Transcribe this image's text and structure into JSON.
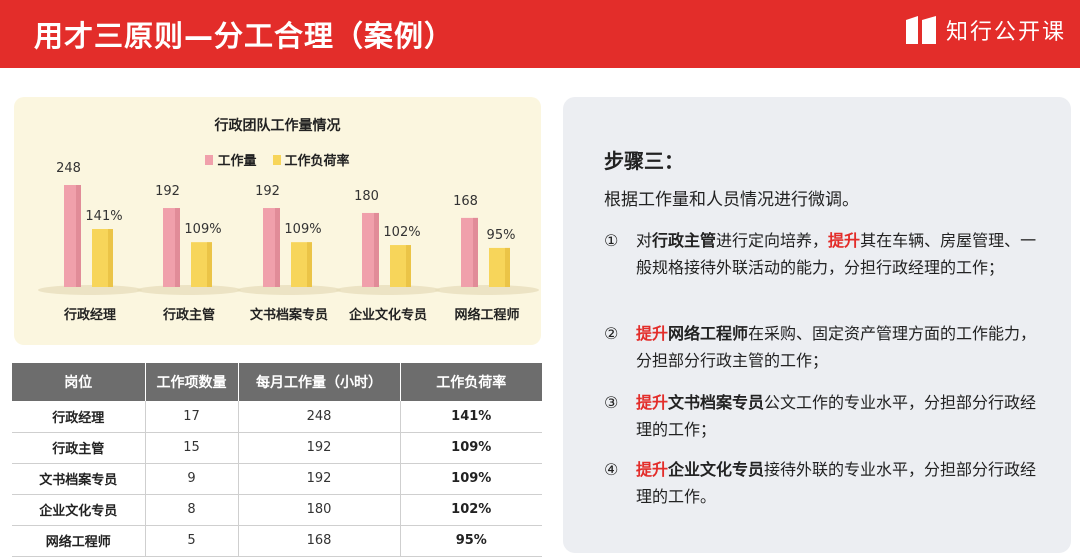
{
  "header": {
    "title": "用才三原则—分工合理（案例）",
    "brand": "知行公开课"
  },
  "colors": {
    "accent": "#e32d2a",
    "workload_bar": "#f0a0ab",
    "load_rate_bar": "#f7d55a"
  },
  "chart_data": {
    "type": "bar",
    "title": "行政团队工作量情况",
    "categories": [
      "行政经理",
      "行政主管",
      "文书档案专员",
      "企业文化专员",
      "网络工程师"
    ],
    "series": [
      {
        "name": "工作量",
        "values": [
          248,
          192,
          192,
          180,
          168
        ],
        "labels": [
          "248",
          "192",
          "192",
          "180",
          "168"
        ]
      },
      {
        "name": "工作负荷率",
        "values": [
          141,
          109,
          109,
          102,
          95
        ],
        "labels": [
          "141%",
          "109%",
          "109%",
          "102%",
          "95%"
        ]
      }
    ],
    "legend": "top",
    "grid": false
  },
  "table": {
    "headers": [
      "岗位",
      "工作项数量",
      "每月工作量（小时）",
      "工作负荷率"
    ],
    "rows": [
      [
        "行政经理",
        "17",
        "248",
        "141%"
      ],
      [
        "行政主管",
        "15",
        "192",
        "109%"
      ],
      [
        "文书档案专员",
        "9",
        "192",
        "109%"
      ],
      [
        "企业文化专员",
        "8",
        "180",
        "102%"
      ],
      [
        "网络工程师",
        "5",
        "168",
        "95%"
      ]
    ]
  },
  "steps": {
    "heading": "步骤三：",
    "intro": "根据工作量和人员情况进行微调。",
    "items": [
      {
        "num": "①",
        "parts": [
          {
            "t": "对",
            "s": ""
          },
          {
            "t": "行政主管",
            "s": "b"
          },
          {
            "t": "进行定向培养，",
            "s": ""
          },
          {
            "t": "提升",
            "s": "red"
          },
          {
            "t": "其在车辆、房屋管理、一般规格接待外联活动的能力，分担行政经理的工作；",
            "s": ""
          }
        ]
      },
      {
        "num": "②",
        "parts": [
          {
            "t": "提升",
            "s": "red"
          },
          {
            "t": "网络工程师",
            "s": "b"
          },
          {
            "t": "在采购、固定资产管理方面的工作能力，分担部分行政主管的工作；",
            "s": ""
          }
        ]
      },
      {
        "num": "③",
        "parts": [
          {
            "t": "提升",
            "s": "red"
          },
          {
            "t": "文书档案专员",
            "s": "b"
          },
          {
            "t": "公文工作的专业水平，分担部分行政经理的工作；",
            "s": ""
          }
        ]
      },
      {
        "num": "④",
        "parts": [
          {
            "t": "提升",
            "s": "red"
          },
          {
            "t": "企业文化专员",
            "s": "b"
          },
          {
            "t": "接待外联的专业水平，分担部分行政经理的工作。",
            "s": ""
          }
        ]
      }
    ]
  }
}
